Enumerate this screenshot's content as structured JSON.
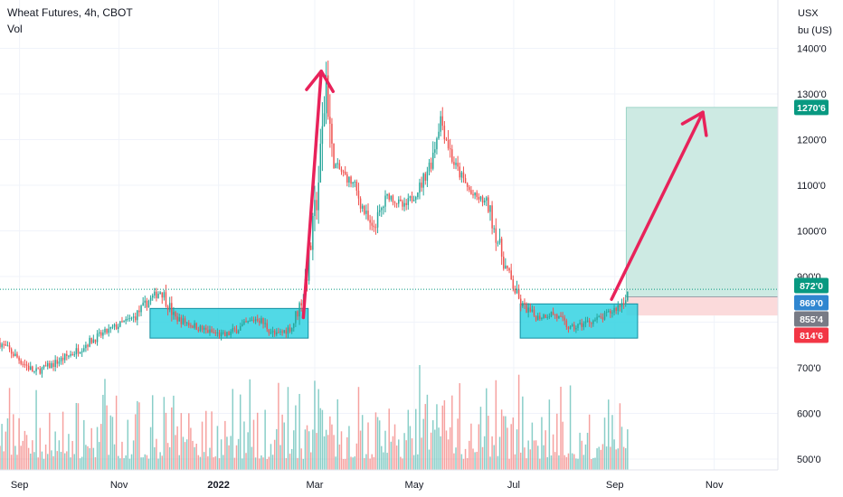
{
  "header": {
    "title": "Wheat Futures, 4h, CBOT",
    "indicator": "Vol"
  },
  "currency": {
    "line1": "USX",
    "line2": "bu (US)"
  },
  "colors": {
    "up": "#26a69a",
    "down": "#ef5350",
    "zone_fill": "#33d2e2",
    "zone_stroke": "#138ea0",
    "target_fill": "#cdeae3",
    "stop_fill": "#fbdadb",
    "arrow": "#e8225a",
    "grid": "#f0f3fa",
    "last_price": "#089981",
    "tag_blue": "#2f86d0",
    "tag_grey": "#787b86",
    "tag_red": "#f23645",
    "tag_green": "#089981"
  },
  "chart_data": {
    "type": "candlestick",
    "instrument": "Wheat Futures",
    "timeframe": "4h",
    "exchange": "CBOT",
    "grid": true,
    "x_ticks": [
      "Sep",
      "Nov",
      "2022",
      "Mar",
      "May",
      "Jul",
      "Sep",
      "Nov"
    ],
    "y_ticks": [
      "500'0",
      "600'0",
      "700'0",
      "900'0",
      "1000'0",
      "1100'0",
      "1200'0",
      "1300'0",
      "1400'0"
    ],
    "y_range": [
      480,
      1480
    ],
    "price_path": [
      {
        "date": "2021-08-20",
        "price": 755
      },
      {
        "date": "2021-09-10",
        "price": 690
      },
      {
        "date": "2021-09-20",
        "price": 705
      },
      {
        "date": "2021-10-05",
        "price": 735
      },
      {
        "date": "2021-10-15",
        "price": 760
      },
      {
        "date": "2021-10-30",
        "price": 790
      },
      {
        "date": "2021-11-10",
        "price": 810
      },
      {
        "date": "2021-11-20",
        "price": 850
      },
      {
        "date": "2021-11-27",
        "price": 870
      },
      {
        "date": "2021-12-05",
        "price": 810
      },
      {
        "date": "2021-12-15",
        "price": 795
      },
      {
        "date": "2021-12-25",
        "price": 780
      },
      {
        "date": "2022-01-05",
        "price": 770
      },
      {
        "date": "2022-01-15",
        "price": 790
      },
      {
        "date": "2022-01-25",
        "price": 810
      },
      {
        "date": "2022-02-05",
        "price": 770
      },
      {
        "date": "2022-02-15",
        "price": 790
      },
      {
        "date": "2022-02-22",
        "price": 860
      },
      {
        "date": "2022-02-28",
        "price": 1000
      },
      {
        "date": "2022-03-05",
        "price": 1170
      },
      {
        "date": "2022-03-08",
        "price": 1340
      },
      {
        "date": "2022-03-12",
        "price": 1150
      },
      {
        "date": "2022-03-25",
        "price": 1100
      },
      {
        "date": "2022-04-05",
        "price": 1000
      },
      {
        "date": "2022-04-15",
        "price": 1080
      },
      {
        "date": "2022-04-25",
        "price": 1050
      },
      {
        "date": "2022-05-05",
        "price": 1100
      },
      {
        "date": "2022-05-12",
        "price": 1160
      },
      {
        "date": "2022-05-17",
        "price": 1250
      },
      {
        "date": "2022-05-25",
        "price": 1150
      },
      {
        "date": "2022-06-05",
        "price": 1080
      },
      {
        "date": "2022-06-15",
        "price": 1060
      },
      {
        "date": "2022-06-25",
        "price": 930
      },
      {
        "date": "2022-07-05",
        "price": 840
      },
      {
        "date": "2022-07-15",
        "price": 810
      },
      {
        "date": "2022-07-25",
        "price": 820
      },
      {
        "date": "2022-08-05",
        "price": 785
      },
      {
        "date": "2022-08-15",
        "price": 800
      },
      {
        "date": "2022-08-25",
        "price": 810
      },
      {
        "date": "2022-09-05",
        "price": 840
      },
      {
        "date": "2022-09-10",
        "price": 872
      }
    ],
    "accumulation_zones": [
      {
        "start": "2021-11-20",
        "end": "2022-02-25",
        "low": 765,
        "high": 830
      },
      {
        "start": "2022-07-05",
        "end": "2022-09-15",
        "low": 765,
        "high": 840
      }
    ],
    "arrows": [
      {
        "from_date": "2022-02-22",
        "from_price": 810,
        "to_date": "2022-03-05",
        "to_price": 1350
      },
      {
        "from_date": "2022-08-30",
        "from_price": 850,
        "to_date": "2022-10-25",
        "to_price": 1260
      }
    ],
    "position": {
      "start": "2022-09-08",
      "end": "2022-12-10",
      "entry": 855.4,
      "target": 1270.6,
      "stop": 814.6
    },
    "price_tags": [
      {
        "label": "1270'6",
        "value": 1270.6,
        "color": "green"
      },
      {
        "label": "872'0",
        "value": 872,
        "color": "green"
      },
      {
        "label": "869'0",
        "value": 869,
        "color": "blue"
      },
      {
        "label": "855'4",
        "value": 855.4,
        "color": "grey"
      },
      {
        "label": "814'6",
        "value": 814.6,
        "color": "red"
      }
    ],
    "last_price": 872
  }
}
